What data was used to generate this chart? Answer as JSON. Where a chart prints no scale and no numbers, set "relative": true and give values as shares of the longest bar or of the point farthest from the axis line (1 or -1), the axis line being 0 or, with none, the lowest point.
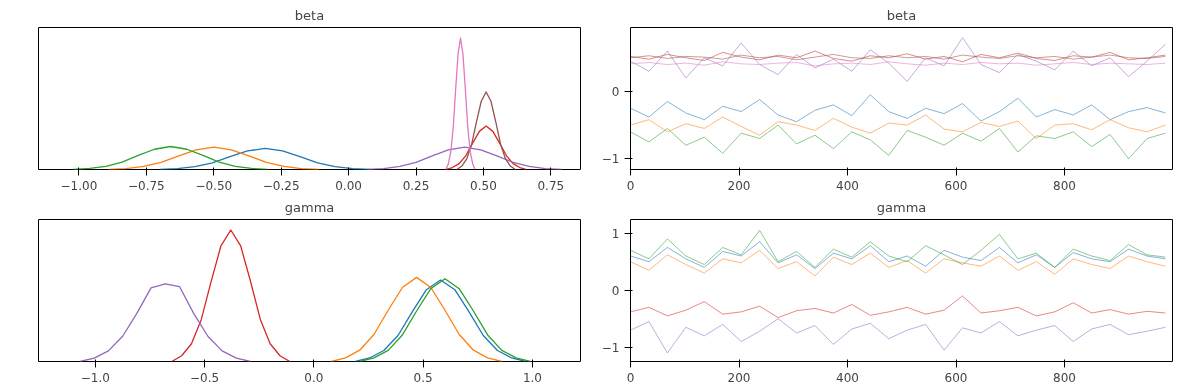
{
  "chart_data": [
    {
      "type": "line",
      "title": "beta",
      "relative": true,
      "tick_labels": "x",
      "xlim": [
        -1.15,
        0.86
      ],
      "xticks": [
        {
          "value": -1.0,
          "label": "−1.00"
        },
        {
          "value": -0.75,
          "label": "−0.75"
        },
        {
          "value": -0.5,
          "label": "−0.50"
        },
        {
          "value": -0.25,
          "label": "−0.25"
        },
        {
          "value": 0,
          "label": "0.00"
        },
        {
          "value": 0.25,
          "label": "0.25"
        },
        {
          "value": 0.5,
          "label": "0.50"
        },
        {
          "value": 0.75,
          "label": "0.75"
        }
      ],
      "series": [
        {
          "color": "#1f77b4",
          "x": [
            -0.7,
            -0.635,
            -0.57,
            -0.505,
            -0.44,
            -0.375,
            -0.31,
            -0.245,
            -0.18,
            -0.115,
            -0.05,
            0.015,
            0.08
          ],
          "values": [
            0,
            0.007,
            0.022,
            0.051,
            0.098,
            0.141,
            0.16,
            0.141,
            0.098,
            0.051,
            0.022,
            0.007,
            0
          ]
        },
        {
          "color": "#ff7f0e",
          "x": [
            -0.89,
            -0.825,
            -0.76,
            -0.695,
            -0.63,
            -0.565,
            -0.5,
            -0.435,
            -0.37,
            -0.305,
            -0.24,
            -0.175,
            -0.11
          ],
          "values": [
            0,
            0.007,
            0.023,
            0.054,
            0.104,
            0.15,
            0.17,
            0.15,
            0.104,
            0.054,
            0.023,
            0.007,
            0
          ]
        },
        {
          "color": "#2ca02c",
          "x": [
            -1.02,
            -0.96,
            -0.9,
            -0.84,
            -0.78,
            -0.72,
            -0.66,
            -0.6,
            -0.54,
            -0.48,
            -0.42,
            -0.36,
            -0.3
          ],
          "values": [
            0,
            0.008,
            0.024,
            0.056,
            0.107,
            0.154,
            0.175,
            0.154,
            0.107,
            0.056,
            0.024,
            0.008,
            0
          ]
        },
        {
          "color": "#d62728",
          "x": [
            0.36,
            0.385,
            0.41,
            0.435,
            0.46,
            0.485,
            0.51,
            0.535,
            0.56,
            0.585,
            0.61,
            0.635,
            0.66
          ],
          "values": [
            0,
            0.015,
            0.045,
            0.106,
            0.201,
            0.29,
            0.33,
            0.29,
            0.201,
            0.106,
            0.045,
            0.015,
            0
          ]
        },
        {
          "color": "#9467bd",
          "x": [
            0.07,
            0.13,
            0.19,
            0.25,
            0.31,
            0.37,
            0.43,
            0.49,
            0.55,
            0.61,
            0.67,
            0.73,
            0.79
          ],
          "values": [
            0,
            0.007,
            0.023,
            0.054,
            0.104,
            0.15,
            0.17,
            0.15,
            0.104,
            0.054,
            0.023,
            0.007,
            0
          ]
        },
        {
          "color": "#8c564b",
          "x": [
            0.402,
            0.42,
            0.438,
            0.456,
            0.474,
            0.492,
            0.51,
            0.528,
            0.546,
            0.564,
            0.582,
            0.6,
            0.618
          ],
          "values": [
            0,
            0.026,
            0.08,
            0.189,
            0.36,
            0.519,
            0.59,
            0.519,
            0.36,
            0.189,
            0.08,
            0.026,
            0
          ]
        },
        {
          "color": "#e377c2",
          "x": [
            0.361,
            0.37,
            0.379,
            0.388,
            0.397,
            0.406,
            0.415,
            0.424,
            0.433,
            0.442,
            0.451,
            0.46,
            0.469
          ],
          "values": [
            0,
            0.044,
            0.135,
            0.32,
            0.61,
            0.88,
            1,
            0.88,
            0.61,
            0.32,
            0.135,
            0.044,
            0
          ]
        }
      ]
    },
    {
      "type": "line",
      "title": "beta",
      "xlim": [
        0,
        999
      ],
      "xticks": [
        0,
        200,
        400,
        600,
        800
      ],
      "ylim": [
        -1.16,
        0.95
      ],
      "yticks": [
        {
          "value": -1,
          "label": "−1"
        },
        0
      ],
      "x": [
        0,
        34,
        68,
        102,
        136,
        170,
        204,
        238,
        272,
        306,
        340,
        374,
        408,
        442,
        476,
        510,
        544,
        578,
        612,
        646,
        680,
        714,
        748,
        782,
        816,
        850,
        884,
        918,
        952,
        986
      ],
      "series": [
        {
          "color": "#1f77b4",
          "values": [
            -0.25,
            -0.38,
            -0.15,
            -0.32,
            -0.42,
            -0.22,
            -0.3,
            -0.12,
            -0.35,
            -0.45,
            -0.28,
            -0.2,
            -0.36,
            -0.05,
            -0.3,
            -0.4,
            -0.25,
            -0.33,
            -0.18,
            -0.44,
            -0.3,
            -0.1,
            -0.38,
            -0.27,
            -0.35,
            -0.2,
            -0.42,
            -0.3,
            -0.24,
            -0.32
          ]
        },
        {
          "color": "#ff7f0e",
          "values": [
            -0.5,
            -0.42,
            -0.6,
            -0.48,
            -0.55,
            -0.38,
            -0.52,
            -0.65,
            -0.45,
            -0.5,
            -0.58,
            -0.4,
            -0.53,
            -0.62,
            -0.47,
            -0.5,
            -0.35,
            -0.56,
            -0.6,
            -0.46,
            -0.52,
            -0.44,
            -0.7,
            -0.5,
            -0.48,
            -0.57,
            -0.42,
            -0.54,
            -0.6,
            -0.5
          ]
        },
        {
          "color": "#2ca02c",
          "values": [
            -0.6,
            -0.75,
            -0.55,
            -0.8,
            -0.68,
            -0.92,
            -0.62,
            -0.7,
            -0.5,
            -0.78,
            -0.65,
            -0.85,
            -0.6,
            -0.72,
            -0.95,
            -0.58,
            -0.68,
            -0.8,
            -0.62,
            -0.74,
            -0.55,
            -0.9,
            -0.66,
            -0.7,
            -0.6,
            -0.82,
            -0.64,
            -1.0,
            -0.7,
            -0.62
          ]
        },
        {
          "color": "#d62728",
          "values": [
            0.52,
            0.48,
            0.55,
            0.5,
            0.46,
            0.58,
            0.51,
            0.47,
            0.54,
            0.5,
            0.6,
            0.49,
            0.45,
            0.53,
            0.5,
            0.56,
            0.48,
            0.52,
            0.44,
            0.55,
            0.5,
            0.57,
            0.49,
            0.46,
            0.53,
            0.51,
            0.58,
            0.47,
            0.5,
            0.54
          ]
        },
        {
          "color": "#9467bd",
          "values": [
            0.45,
            0.3,
            0.6,
            0.2,
            0.5,
            0.38,
            0.72,
            0.4,
            0.25,
            0.55,
            0.35,
            0.48,
            0.3,
            0.62,
            0.42,
            0.15,
            0.5,
            0.38,
            0.8,
            0.4,
            0.28,
            0.55,
            0.45,
            0.32,
            0.6,
            0.38,
            0.5,
            0.22,
            0.45,
            0.7
          ]
        },
        {
          "color": "#8c564b",
          "values": [
            0.5,
            0.53,
            0.49,
            0.52,
            0.51,
            0.48,
            0.54,
            0.5,
            0.52,
            0.47,
            0.51,
            0.55,
            0.5,
            0.49,
            0.53,
            0.5,
            0.52,
            0.48,
            0.54,
            0.51,
            0.49,
            0.53,
            0.5,
            0.52,
            0.48,
            0.51,
            0.54,
            0.5,
            0.49,
            0.52
          ]
        },
        {
          "color": "#e377c2",
          "values": [
            0.41,
            0.43,
            0.4,
            0.42,
            0.39,
            0.44,
            0.41,
            0.4,
            0.42,
            0.43,
            0.38,
            0.41,
            0.42,
            0.4,
            0.44,
            0.41,
            0.39,
            0.42,
            0.4,
            0.43,
            0.41,
            0.42,
            0.39,
            0.41,
            0.43,
            0.4,
            0.42,
            0.41,
            0.4,
            0.42
          ]
        }
      ]
    },
    {
      "type": "line",
      "title": "gamma",
      "relative": true,
      "tick_labels": "x",
      "xlim": [
        -1.26,
        1.22
      ],
      "xticks": [
        {
          "value": -1.0,
          "label": "−1.0"
        },
        {
          "value": -0.5,
          "label": "−0.5"
        },
        {
          "value": 0,
          "label": "0.0"
        },
        {
          "value": 0.5,
          "label": "0.5"
        },
        {
          "value": 1.0,
          "label": "1.0"
        }
      ],
      "series": [
        {
          "color": "#1f77b4",
          "x": [
            0.19,
            0.255,
            0.32,
            0.385,
            0.45,
            0.515,
            0.58,
            0.645,
            0.71,
            0.775,
            0.84,
            0.905,
            0.97
          ],
          "values": [
            0,
            0.027,
            0.084,
            0.198,
            0.378,
            0.546,
            0.62,
            0.546,
            0.378,
            0.198,
            0.084,
            0.027,
            0
          ]
        },
        {
          "color": "#ff7f0e",
          "x": [
            0.08,
            0.145,
            0.21,
            0.275,
            0.34,
            0.405,
            0.47,
            0.535,
            0.6,
            0.665,
            0.73,
            0.795,
            0.86
          ],
          "values": [
            0,
            0.028,
            0.086,
            0.205,
            0.39,
            0.563,
            0.64,
            0.563,
            0.39,
            0.205,
            0.086,
            0.028,
            0
          ]
        },
        {
          "color": "#2ca02c",
          "x": [
            0.21,
            0.275,
            0.34,
            0.405,
            0.47,
            0.535,
            0.6,
            0.665,
            0.73,
            0.795,
            0.86,
            0.925,
            0.99
          ],
          "values": [
            0,
            0.028,
            0.085,
            0.202,
            0.384,
            0.554,
            0.63,
            0.554,
            0.384,
            0.202,
            0.085,
            0.028,
            0
          ]
        },
        {
          "color": "#d62728",
          "x": [
            -0.65,
            -0.605,
            -0.56,
            -0.515,
            -0.47,
            -0.425,
            -0.38,
            -0.335,
            -0.29,
            -0.245,
            -0.2,
            -0.155,
            -0.11
          ],
          "values": [
            0,
            0.044,
            0.135,
            0.32,
            0.61,
            0.88,
            1,
            0.88,
            0.61,
            0.32,
            0.135,
            0.044,
            0
          ]
        },
        {
          "color": "#9467bd",
          "x": [
            -1.07,
            -1.005,
            -0.94,
            -0.875,
            -0.81,
            -0.745,
            -0.68,
            -0.615,
            -0.55,
            -0.485,
            -0.42,
            -0.355,
            -0.29
          ],
          "values": [
            0,
            0.026,
            0.081,
            0.192,
            0.366,
            0.56,
            0.59,
            0.57,
            0.366,
            0.192,
            0.081,
            0.026,
            0
          ]
        }
      ]
    },
    {
      "type": "line",
      "title": "gamma",
      "xlim": [
        0,
        999
      ],
      "xticks": [
        0,
        200,
        400,
        600,
        800
      ],
      "ylim": [
        -1.25,
        1.24
      ],
      "yticks": [
        {
          "value": -1,
          "label": "−1"
        },
        0,
        1
      ],
      "x": [
        0,
        34,
        68,
        102,
        136,
        170,
        204,
        238,
        272,
        306,
        340,
        374,
        408,
        442,
        476,
        510,
        544,
        578,
        612,
        646,
        680,
        714,
        748,
        782,
        816,
        850,
        884,
        918,
        952,
        986
      ],
      "series": [
        {
          "color": "#1f77b4",
          "values": [
            0.6,
            0.5,
            0.75,
            0.55,
            0.4,
            0.68,
            0.6,
            0.85,
            0.48,
            0.62,
            0.38,
            0.65,
            0.55,
            0.78,
            0.5,
            0.6,
            0.42,
            0.7,
            0.58,
            0.52,
            0.75,
            0.48,
            0.62,
            0.4,
            0.66,
            0.55,
            0.5,
            0.72,
            0.6,
            0.55
          ]
        },
        {
          "color": "#ff7f0e",
          "values": [
            0.5,
            0.35,
            0.62,
            0.45,
            0.3,
            0.55,
            0.48,
            0.7,
            0.38,
            0.5,
            0.25,
            0.58,
            0.45,
            0.65,
            0.4,
            0.52,
            0.3,
            0.55,
            0.48,
            0.42,
            0.6,
            0.35,
            0.5,
            0.28,
            0.55,
            0.45,
            0.38,
            0.6,
            0.5,
            0.42
          ]
        },
        {
          "color": "#2ca02c",
          "values": [
            0.7,
            0.55,
            0.9,
            0.6,
            0.45,
            0.75,
            0.62,
            1.05,
            0.5,
            0.68,
            0.4,
            0.72,
            0.58,
            0.85,
            0.6,
            0.5,
            0.78,
            0.62,
            0.45,
            0.7,
            0.98,
            0.55,
            0.65,
            0.4,
            0.72,
            0.6,
            0.52,
            0.8,
            0.62,
            0.58
          ]
        },
        {
          "color": "#d62728",
          "values": [
            -0.38,
            -0.3,
            -0.45,
            -0.35,
            -0.2,
            -0.42,
            -0.38,
            -0.28,
            -0.48,
            -0.36,
            -0.32,
            -0.4,
            -0.25,
            -0.44,
            -0.38,
            -0.3,
            -0.42,
            -0.35,
            -0.1,
            -0.4,
            -0.36,
            -0.3,
            -0.45,
            -0.38,
            -0.22,
            -0.4,
            -0.34,
            -0.42,
            -0.37,
            -0.4
          ]
        },
        {
          "color": "#9467bd",
          "values": [
            -0.7,
            -0.55,
            -1.1,
            -0.65,
            -0.8,
            -0.6,
            -0.9,
            -0.72,
            -0.5,
            -0.75,
            -0.62,
            -0.95,
            -0.68,
            -0.58,
            -0.85,
            -0.7,
            -0.6,
            -1.05,
            -0.66,
            -0.75,
            -0.55,
            -0.8,
            -0.7,
            -0.62,
            -0.9,
            -0.68,
            -0.6,
            -0.78,
            -0.72,
            -0.65
          ]
        }
      ]
    }
  ]
}
